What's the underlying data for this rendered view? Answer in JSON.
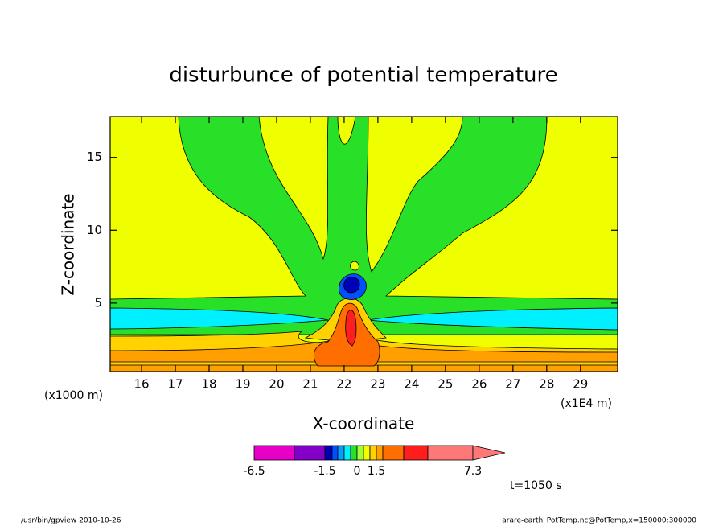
{
  "chart_data": {
    "type": "contour",
    "title": "disturbunce of potential temperature",
    "xlabel": "X-coordinate",
    "ylabel": "Z-coordinate",
    "x_unit_label": "(x1000 m)",
    "x2_unit_label": "(x1E4 m)",
    "xlim": [
      15.07,
      30.1
    ],
    "xticks": [
      16,
      17,
      18,
      19,
      20,
      21,
      22,
      23,
      24,
      25,
      26,
      27,
      28,
      29
    ],
    "ylim": [
      0.3,
      17.8
    ],
    "yticks": [
      5,
      10,
      15
    ],
    "colorbar": {
      "colors": [
        "#e600c8",
        "#8200c8",
        "#0000b4",
        "#0050ff",
        "#00a0ff",
        "#00f0ff",
        "#28e028",
        "#a0ff3c",
        "#f0ff00",
        "#ffd200",
        "#ffa000",
        "#ff6e00",
        "#ff1e1e",
        "#ff7878"
      ],
      "ticks": [
        -6.5,
        -1.5,
        0,
        1.5,
        7.3
      ]
    },
    "time_label": "t=1050 s",
    "footer_left": "/usr/bin/gpview   2010-10-26",
    "footer_right": "arare-earth_PotTemp.nc@PotTemp,x=150000:300000"
  }
}
